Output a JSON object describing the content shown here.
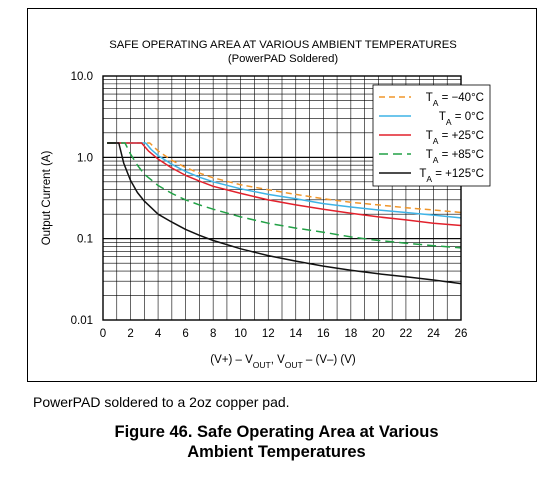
{
  "chart_data": {
    "type": "line",
    "title": "SAFE OPERATING AREA AT VARIOUS AMBIENT TEMPERATURES",
    "subtitle": "(PowerPAD Soldered)",
    "ylabel": "Output Current (A)",
    "xlabel": {
      "parts": [
        {
          "t": "(V+) – V",
          "sub": false
        },
        {
          "t": "OUT",
          "sub": true
        },
        {
          "t": ", V",
          "sub": false
        },
        {
          "t": "OUT",
          "sub": true
        },
        {
          "t": " – (V–) (V)",
          "sub": false
        }
      ]
    },
    "xlim": [
      0,
      26
    ],
    "ylim": [
      0.01,
      10
    ],
    "yscale": "log",
    "grid": true,
    "legend_position": "top-right",
    "x_ticks": [
      "0",
      "2",
      "4",
      "6",
      "8",
      "10",
      "12",
      "14",
      "16",
      "18",
      "20",
      "22",
      "24",
      "26"
    ],
    "y_ticks": [
      {
        "value": 10,
        "label": "10.0"
      },
      {
        "value": 1,
        "label": "1.0"
      },
      {
        "value": 0.1,
        "label": "0.1"
      },
      {
        "value": 0.01,
        "label": "0.01"
      }
    ],
    "series": [
      {
        "name": "T_A = −40°C",
        "label_main": "T",
        "label_sub": "A",
        "label_rest": " = −40°C",
        "color": "#f0962a",
        "dash": "6,4",
        "width": 1.5,
        "points": [
          [
            0.3,
            1.5
          ],
          [
            3.4,
            1.5
          ],
          [
            4,
            1.2
          ],
          [
            5,
            0.92
          ],
          [
            6,
            0.75
          ],
          [
            7,
            0.64
          ],
          [
            8,
            0.56
          ],
          [
            10,
            0.46
          ],
          [
            12,
            0.4
          ],
          [
            14,
            0.35
          ],
          [
            16,
            0.31
          ],
          [
            18,
            0.28
          ],
          [
            20,
            0.26
          ],
          [
            22,
            0.24
          ],
          [
            24,
            0.225
          ],
          [
            26,
            0.21
          ]
        ]
      },
      {
        "name": "T_A = 0°C",
        "label_main": "T",
        "label_sub": "A",
        "label_rest": " = 0°C",
        "color": "#3eb3e6",
        "dash": "",
        "width": 1.5,
        "points": [
          [
            0.3,
            1.5
          ],
          [
            3.1,
            1.5
          ],
          [
            3.5,
            1.25
          ],
          [
            4,
            1.05
          ],
          [
            5,
            0.82
          ],
          [
            6,
            0.67
          ],
          [
            7,
            0.57
          ],
          [
            8,
            0.5
          ],
          [
            10,
            0.41
          ],
          [
            12,
            0.35
          ],
          [
            14,
            0.31
          ],
          [
            16,
            0.27
          ],
          [
            18,
            0.245
          ],
          [
            20,
            0.225
          ],
          [
            22,
            0.21
          ],
          [
            24,
            0.195
          ],
          [
            26,
            0.18
          ]
        ]
      },
      {
        "name": "T_A = +25°C",
        "label_main": "T",
        "label_sub": "A",
        "label_rest": " = +25°C",
        "color": "#e2212c",
        "dash": "",
        "width": 1.5,
        "points": [
          [
            0.3,
            1.5
          ],
          [
            2.8,
            1.5
          ],
          [
            3.3,
            1.2
          ],
          [
            4,
            0.95
          ],
          [
            5,
            0.74
          ],
          [
            6,
            0.6
          ],
          [
            7,
            0.51
          ],
          [
            8,
            0.44
          ],
          [
            10,
            0.36
          ],
          [
            12,
            0.3
          ],
          [
            14,
            0.26
          ],
          [
            16,
            0.23
          ],
          [
            18,
            0.205
          ],
          [
            20,
            0.185
          ],
          [
            22,
            0.17
          ],
          [
            24,
            0.155
          ],
          [
            26,
            0.145
          ]
        ]
      },
      {
        "name": "T_A = +85°C",
        "label_main": "T",
        "label_sub": "A",
        "label_rest": " = +85°C",
        "color": "#22a146",
        "dash": "9,5",
        "width": 1.5,
        "points": [
          [
            0.3,
            1.5
          ],
          [
            1.6,
            1.5
          ],
          [
            2,
            1.1
          ],
          [
            2.5,
            0.8
          ],
          [
            3,
            0.62
          ],
          [
            4,
            0.45
          ],
          [
            5,
            0.36
          ],
          [
            6,
            0.3
          ],
          [
            7,
            0.26
          ],
          [
            8,
            0.23
          ],
          [
            10,
            0.185
          ],
          [
            12,
            0.155
          ],
          [
            14,
            0.135
          ],
          [
            16,
            0.12
          ],
          [
            18,
            0.105
          ],
          [
            20,
            0.095
          ],
          [
            22,
            0.088
          ],
          [
            24,
            0.082
          ],
          [
            26,
            0.077
          ]
        ]
      },
      {
        "name": "T_A = +125°C",
        "label_main": "T",
        "label_sub": "A",
        "label_rest": " = +125°C",
        "color": "#111111",
        "dash": "",
        "width": 1.5,
        "points": [
          [
            0.3,
            1.5
          ],
          [
            1.15,
            1.5
          ],
          [
            1.5,
            0.85
          ],
          [
            2,
            0.52
          ],
          [
            2.5,
            0.37
          ],
          [
            3,
            0.29
          ],
          [
            4,
            0.2
          ],
          [
            5,
            0.16
          ],
          [
            6,
            0.13
          ],
          [
            7,
            0.11
          ],
          [
            8,
            0.095
          ],
          [
            10,
            0.075
          ],
          [
            12,
            0.062
          ],
          [
            14,
            0.053
          ],
          [
            16,
            0.046
          ],
          [
            18,
            0.041
          ],
          [
            20,
            0.037
          ],
          [
            22,
            0.034
          ],
          [
            24,
            0.031
          ],
          [
            26,
            0.028
          ]
        ]
      }
    ]
  },
  "caption": "PowerPAD soldered to a 2oz copper pad.",
  "figure_title": {
    "line1": "Figure 46.  Safe Operating Area at Various",
    "line2": "Ambient Temperatures"
  }
}
